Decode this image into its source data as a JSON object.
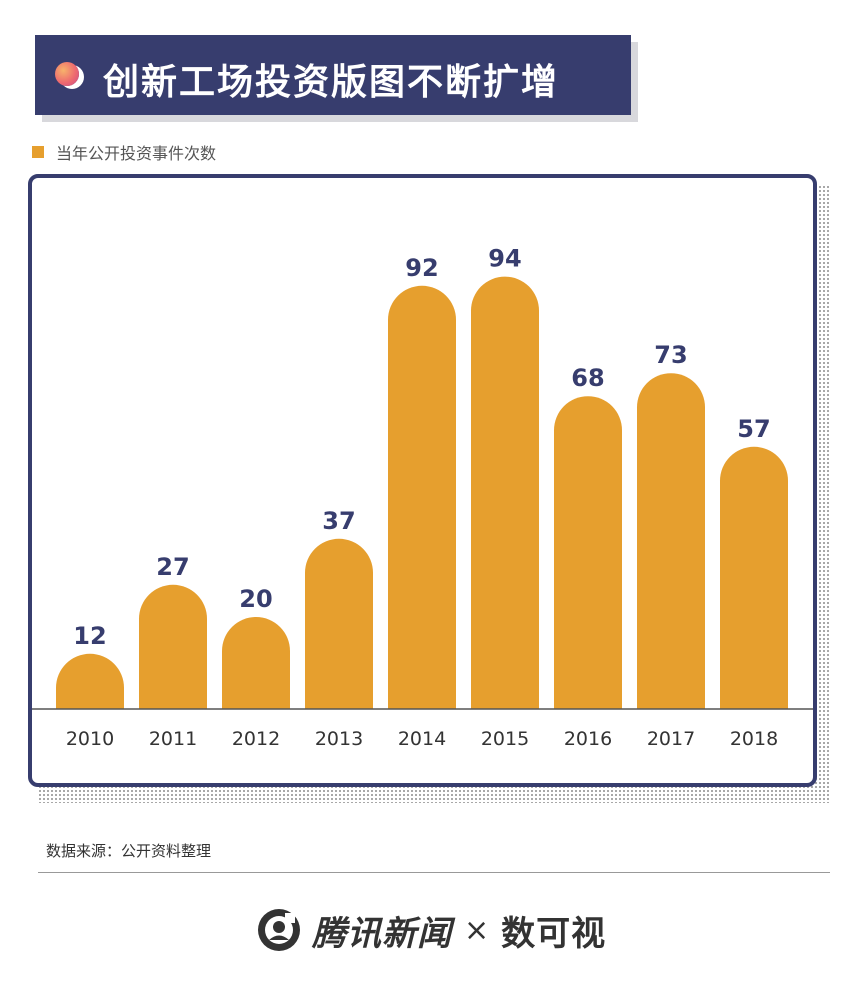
{
  "header": {
    "title": "创新工场投资版图不断扩增"
  },
  "legend": {
    "label": "当年公开投资事件次数",
    "color": "#e69f2e"
  },
  "colors": {
    "bar": "#e69f2e",
    "frame": "#373d6e",
    "value_label": "#373d6e",
    "tick_label": "#333333"
  },
  "chart_data": {
    "type": "bar",
    "categories": [
      "2010",
      "2011",
      "2012",
      "2013",
      "2014",
      "2015",
      "2016",
      "2017",
      "2018"
    ],
    "series": [
      {
        "name": "当年公开投资事件次数",
        "values": [
          12,
          27,
          20,
          37,
          92,
          94,
          68,
          73,
          57
        ]
      }
    ],
    "title": "创新工场投资版图不断扩增",
    "xlabel": "",
    "ylabel": "",
    "ylim": [
      0,
      100
    ],
    "grid": false,
    "legend_position": "top-left",
    "data_labels": true
  },
  "footer": {
    "source": "数据来源：公开资料整理",
    "brand": "腾讯新闻",
    "separator": "×",
    "partner": "数可视",
    "logo_icon": "tencent-news-logo-icon"
  }
}
